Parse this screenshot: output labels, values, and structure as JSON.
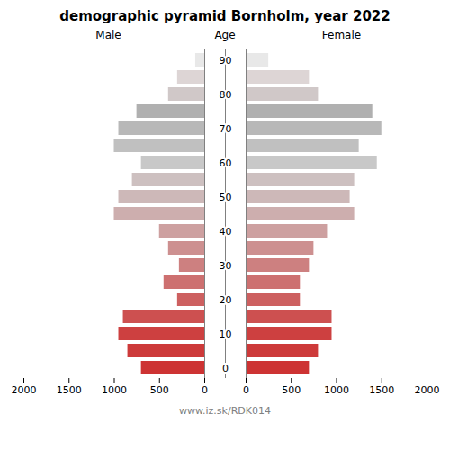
{
  "chart_data": {
    "type": "bar",
    "orientation": "horizontal",
    "title": "demographic pyramid Bornholm, year 2022",
    "ylabel": "Age",
    "annotations": [
      "www.iz.sk/RDK014"
    ],
    "categories": [
      "0",
      null,
      "10",
      null,
      "20",
      null,
      "30",
      null,
      "40",
      null,
      "50",
      null,
      "60",
      null,
      "70",
      null,
      "80",
      null,
      "90"
    ],
    "series": [
      {
        "name": "Male",
        "values": [
          700,
          850,
          950,
          900,
          300,
          450,
          280,
          400,
          500,
          1000,
          950,
          800,
          700,
          1000,
          950,
          750,
          400,
          300,
          100
        ]
      },
      {
        "name": "Female",
        "values": [
          700,
          800,
          950,
          950,
          600,
          600,
          700,
          750,
          900,
          1200,
          1150,
          1200,
          1450,
          1250,
          1500,
          1400,
          800,
          700,
          250
        ]
      }
    ],
    "colors": [
      "#cd3333",
      "#cd3a3a",
      "#cd4040",
      "#cd5050",
      "#cd6060",
      "#cd7070",
      "#cd8080",
      "#cd9090",
      "#cda0a0",
      "#cdaeae",
      "#cdb8b8",
      "#cdc0c0",
      "#c8c8c8",
      "#c0c0c0",
      "#b8b8b8",
      "#b0b0b0",
      "#d0c8c8",
      "#ddd5d5",
      "#e8e8e8"
    ],
    "xlim": [
      0,
      2000
    ],
    "xticks": [
      0,
      500,
      1000,
      1500,
      2000
    ],
    "grid": false
  }
}
